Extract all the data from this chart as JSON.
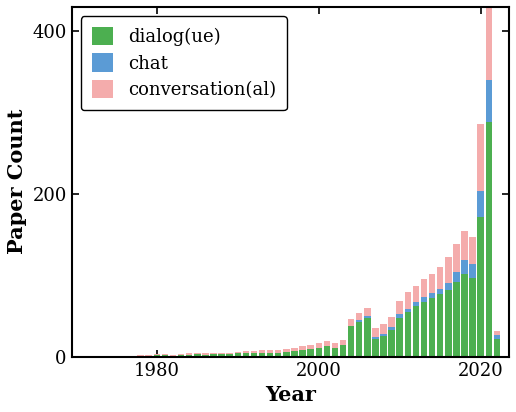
{
  "years": [
    1971,
    1972,
    1973,
    1974,
    1975,
    1976,
    1977,
    1978,
    1979,
    1980,
    1981,
    1982,
    1983,
    1984,
    1985,
    1986,
    1987,
    1988,
    1989,
    1990,
    1991,
    1992,
    1993,
    1994,
    1995,
    1996,
    1997,
    1998,
    1999,
    2000,
    2001,
    2002,
    2003,
    2004,
    2005,
    2006,
    2007,
    2008,
    2009,
    2010,
    2011,
    2012,
    2013,
    2014,
    2015,
    2016,
    2017,
    2018,
    2019,
    2020,
    2021,
    2022
  ],
  "dialog": [
    1,
    1,
    1,
    1,
    1,
    1,
    1,
    1,
    1,
    2,
    2,
    1,
    2,
    2,
    3,
    2,
    3,
    3,
    3,
    4,
    4,
    4,
    5,
    5,
    5,
    6,
    7,
    8,
    9,
    11,
    13,
    11,
    14,
    38,
    43,
    48,
    22,
    25,
    33,
    48,
    55,
    62,
    67,
    72,
    77,
    82,
    92,
    102,
    97,
    172,
    288,
    22
  ],
  "chat": [
    0,
    0,
    0,
    0,
    0,
    0,
    0,
    0,
    0,
    0,
    0,
    0,
    0,
    0,
    0,
    0,
    0,
    0,
    0,
    0,
    0,
    0,
    0,
    0,
    0,
    0,
    0,
    0,
    0,
    0,
    0,
    0,
    0,
    0,
    2,
    2,
    2,
    3,
    3,
    4,
    4,
    5,
    6,
    6,
    6,
    9,
    12,
    17,
    17,
    32,
    52,
    4
  ],
  "conversation": [
    0,
    0,
    0,
    0,
    0,
    0,
    0,
    1,
    1,
    1,
    1,
    1,
    1,
    2,
    2,
    2,
    2,
    2,
    2,
    2,
    3,
    3,
    3,
    3,
    3,
    4,
    4,
    5,
    5,
    6,
    6,
    6,
    7,
    8,
    9,
    10,
    11,
    12,
    13,
    16,
    20,
    20,
    22,
    24,
    27,
    32,
    35,
    36,
    33,
    82,
    135,
    6
  ],
  "color_dialog": "#4CAF50",
  "color_chat": "#5B9BD5",
  "color_conversation": "#F4ACAC",
  "ylabel": "Paper Count",
  "xlabel": "Year",
  "legend_labels": [
    "dialog(ue)",
    "chat",
    "conversation(al)"
  ],
  "ylim": [
    0,
    430
  ],
  "xlim": [
    1969.5,
    2023.5
  ],
  "xticks": [
    1980,
    2000,
    2020
  ],
  "yticks": [
    0,
    200,
    400
  ],
  "label_fontsize": 15,
  "tick_fontsize": 13,
  "legend_fontsize": 13
}
